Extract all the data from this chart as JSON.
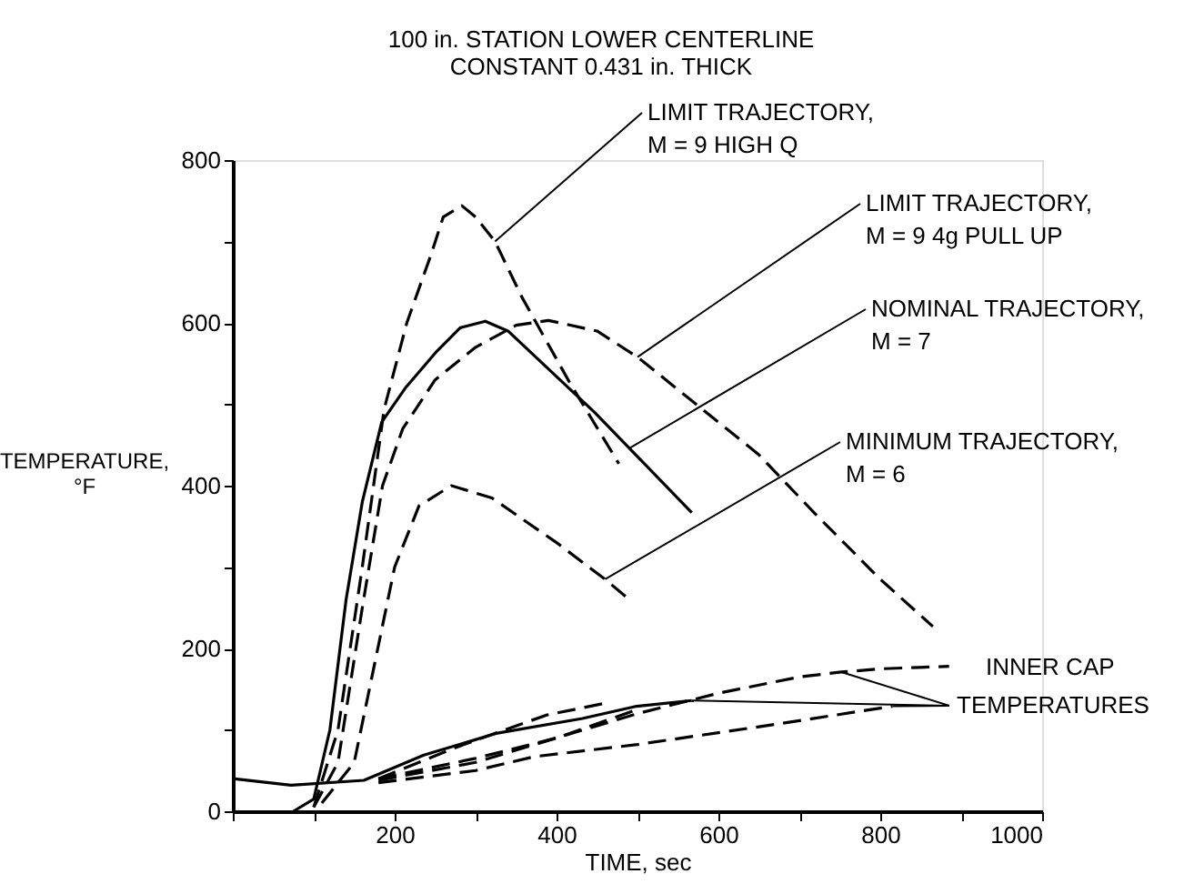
{
  "chart_data": {
    "type": "line",
    "title": "100 in. STATION LOWER CENTERLINE",
    "subtitle": "CONSTANT 0.431 in. THICK",
    "xlabel": "TIME, sec",
    "ylabel": "TEMPERATURE, °F",
    "xlim": [
      0,
      1000
    ],
    "ylim": [
      0,
      800
    ],
    "xticks": [
      {
        "value": 0,
        "label": null
      },
      {
        "value": 100,
        "label": null
      },
      200,
      {
        "value": 300,
        "label": null
      },
      400,
      {
        "value": 500,
        "label": null
      },
      600,
      {
        "value": 700,
        "label": null
      },
      800,
      {
        "value": 900,
        "label": null
      },
      1000
    ],
    "yticks": [
      0,
      {
        "value": 100,
        "label": null
      },
      200,
      {
        "value": 300,
        "label": null
      },
      400,
      {
        "value": 500,
        "label": null
      },
      600,
      {
        "value": 700,
        "label": null
      },
      800
    ],
    "grid": false,
    "marker": "none",
    "series": [
      {
        "name": "LIMIT TRAJECTORY, M = 9 HIGH Q",
        "color": "#000000",
        "line_style": "dashed",
        "x": [
          100,
          130,
          160,
          187,
          215,
          245,
          260,
          283,
          300,
          324,
          357,
          416,
          477
        ],
        "values": [
          5,
          100,
          300,
          494,
          600,
          684,
          730,
          744,
          730,
          700,
          632,
          527,
          427
        ]
      },
      {
        "name": "LIMIT TRAJECTORY, M = 9 4g PULL UP",
        "color": "#000000",
        "line_style": "dashed",
        "x": [
          100,
          130,
          160,
          185,
          210,
          250,
          300,
          350,
          390,
          450,
          500,
          560,
          650,
          720,
          800,
          865
        ],
        "values": [
          5,
          60,
          250,
          400,
          470,
          530,
          570,
          597,
          603,
          590,
          558,
          510,
          438,
          365,
          285,
          227
        ]
      },
      {
        "name": "NOMINAL TRAJECTORY, M = 7",
        "color": "#000000",
        "line_style": "solid",
        "x": [
          75,
          100,
          120,
          140,
          160,
          184,
          214,
          252,
          281,
          312,
          340,
          447,
          490,
          567
        ],
        "values": [
          0,
          15,
          100,
          260,
          380,
          478,
          521,
          565,
          594,
          602,
          590,
          490,
          446,
          367
        ]
      },
      {
        "name": "MINIMUM TRAJECTORY, M = 6",
        "color": "#000000",
        "line_style": "dashed",
        "x": [
          110,
          150,
          175,
          200,
          230,
          270,
          320,
          400,
          460,
          490
        ],
        "values": [
          10,
          60,
          180,
          300,
          375,
          400,
          385,
          330,
          285,
          260
        ]
      },
      {
        "color": "#000000",
        "line_style": "solid",
        "x": [
          0,
          72,
          162,
          236,
          327,
          432,
          499,
          567
        ],
        "values": [
          40,
          32,
          38,
          69,
          96,
          114,
          129,
          136
        ]
      },
      {
        "color": "#000000",
        "line_style": "dashed",
        "x": [
          180,
          300,
          400,
          500,
          600,
          700,
          752,
          800,
          885
        ],
        "values": [
          40,
          65,
          90,
          120,
          145,
          165,
          171,
          175,
          178
        ]
      },
      {
        "color": "#000000",
        "line_style": "dashed",
        "x": [
          180,
          280,
          387,
          461
        ],
        "values": [
          40,
          80,
          118,
          133
        ]
      },
      {
        "color": "#000000",
        "line_style": "dashed",
        "x": [
          180,
          300,
          400,
          500
        ],
        "values": [
          38,
          60,
          90,
          125
        ]
      },
      {
        "color": "#000000",
        "line_style": "dashed",
        "x": [
          180,
          300,
          372,
          500,
          672,
          815
        ],
        "values": [
          35,
          50,
          67,
          82,
          107,
          129
        ]
      }
    ],
    "annotations": [
      {
        "text": "INNER CAP TEMPERATURES",
        "x": 815,
        "y": 129
      }
    ]
  }
}
